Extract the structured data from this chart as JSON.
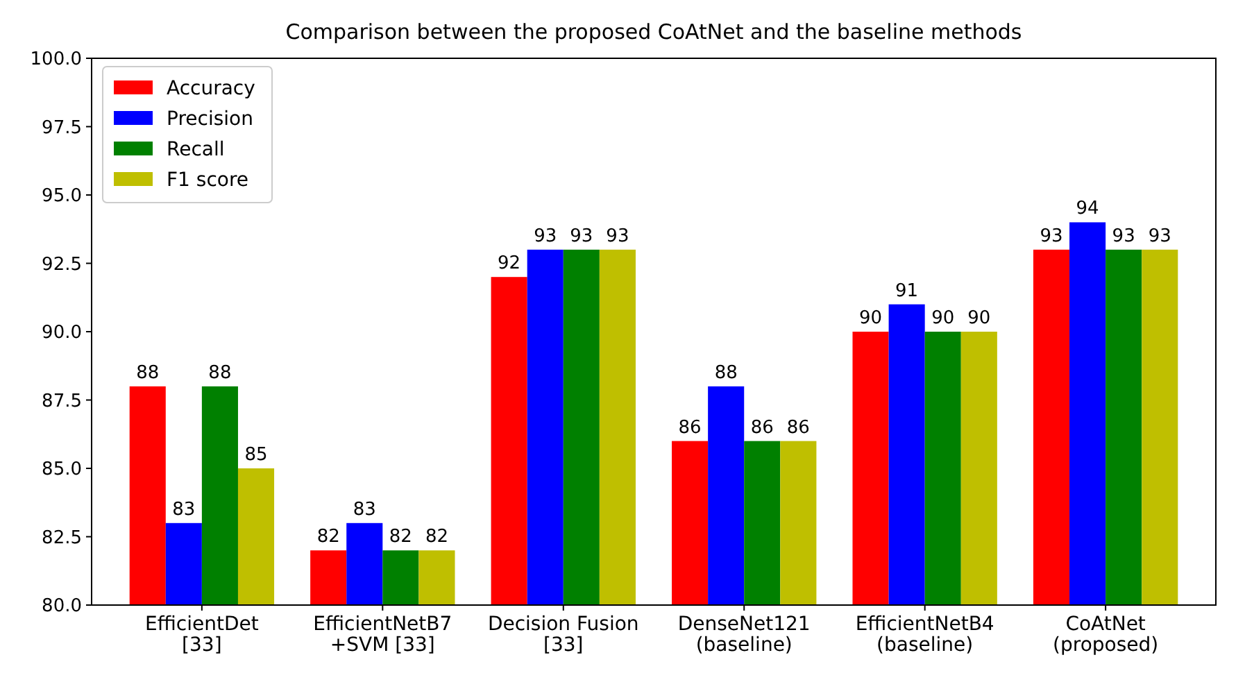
{
  "chart_data": {
    "type": "bar",
    "title": "Comparison between the proposed CoAtNet and the baseline methods",
    "categories": [
      "EfficientDet\n[33]",
      "EfficientNetB7\n+SVM [33]",
      "Decision Fusion\n[33]",
      "DenseNet121\n(baseline)",
      "EfficientNetB4\n(baseline)",
      "CoAtNet\n(proposed)"
    ],
    "series": [
      {
        "name": "Accuracy",
        "color": "#ff0000",
        "values": [
          88,
          82,
          92,
          86,
          90,
          93
        ]
      },
      {
        "name": "Precision",
        "color": "#0000ff",
        "values": [
          83,
          83,
          93,
          88,
          91,
          94
        ]
      },
      {
        "name": "Recall",
        "color": "#008000",
        "values": [
          88,
          82,
          93,
          86,
          90,
          93
        ]
      },
      {
        "name": "F1 score",
        "color": "#bfbf00",
        "values": [
          85,
          82,
          93,
          86,
          90,
          93
        ]
      }
    ],
    "ylim": [
      80,
      100
    ],
    "yticks": [
      {
        "value": 80,
        "label": "80.0"
      },
      {
        "value": 82.5,
        "label": "82.5"
      },
      {
        "value": 85,
        "label": "85.0"
      },
      {
        "value": 87.5,
        "label": "87.5"
      },
      {
        "value": 90,
        "label": "90.0"
      },
      {
        "value": 92.5,
        "label": "92.5"
      },
      {
        "value": 95,
        "label": "95.0"
      },
      {
        "value": 97.5,
        "label": "97.5"
      },
      {
        "value": 100,
        "label": "100.0"
      }
    ],
    "data_labels": true,
    "grid": false,
    "legend": "top left"
  }
}
